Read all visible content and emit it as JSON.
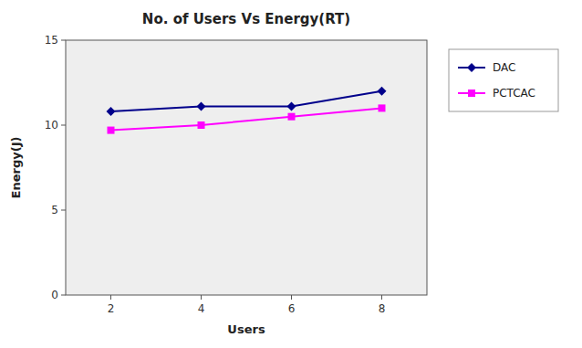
{
  "chart_data": {
    "type": "line",
    "title": "No. of Users Vs Energy(RT)",
    "xlabel": "Users",
    "ylabel": "Energy(J)",
    "x": [
      2,
      4,
      6,
      8
    ],
    "series": [
      {
        "name": "DAC",
        "color": "#00008B",
        "marker": "diamond",
        "values": [
          10.8,
          11.1,
          11.1,
          12.0
        ]
      },
      {
        "name": "PCTCAC",
        "color": "#FF00FF",
        "marker": "square",
        "values": [
          9.7,
          10.0,
          10.5,
          11.0
        ]
      }
    ],
    "xlim": [
      1,
      9
    ],
    "xticks": [
      2,
      4,
      6,
      8
    ],
    "ylim": [
      0,
      15
    ],
    "yticks": [
      0,
      5,
      10,
      15
    ],
    "grid": false,
    "legend": "right"
  }
}
